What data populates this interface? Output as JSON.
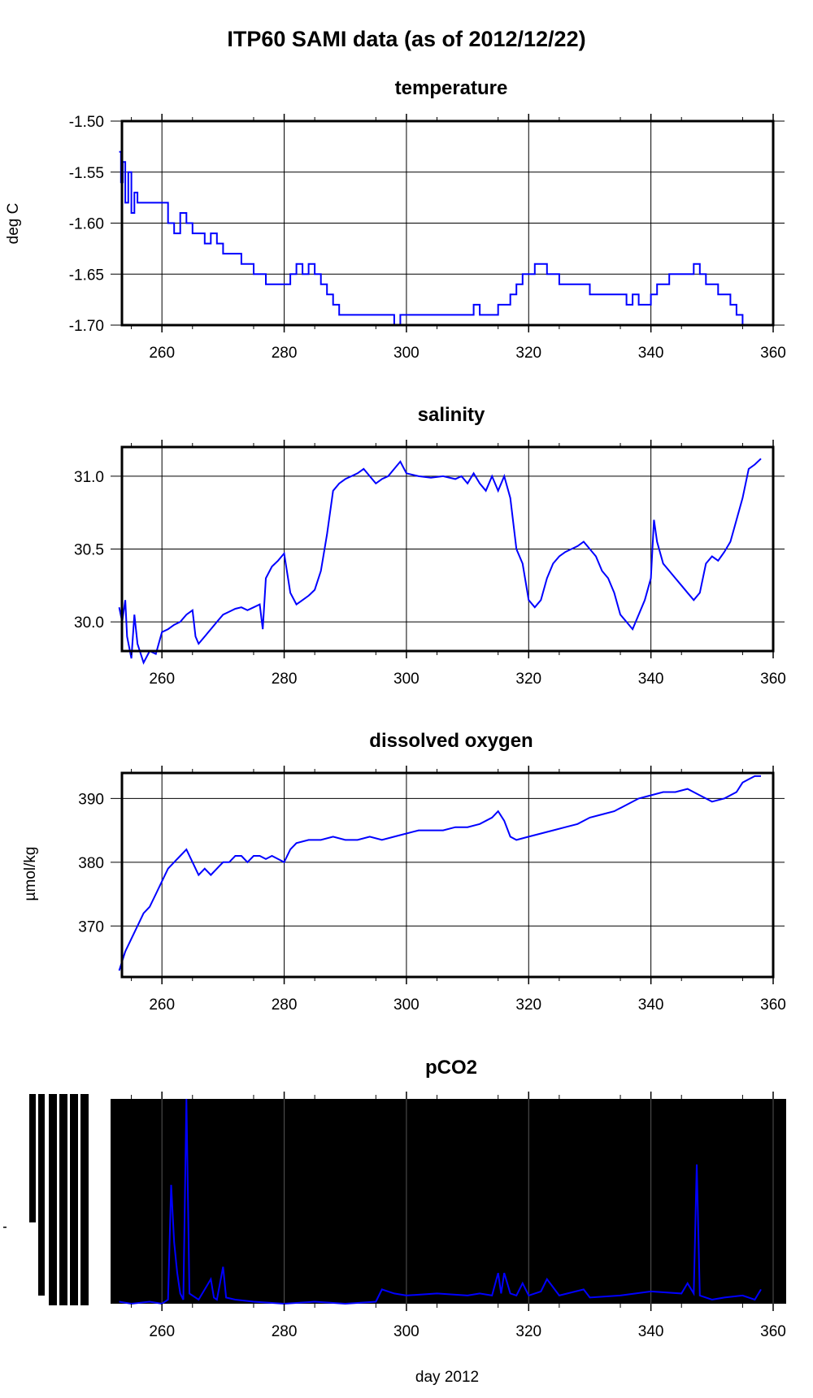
{
  "figure": {
    "title": "ITP60 SAMI data (as of 2012/12/22)",
    "xlabel": "day 2012",
    "line_color": "#0000ff",
    "grid_color": "#000000"
  },
  "chart_data": [
    {
      "type": "line",
      "title": "temperature",
      "xlabel": "",
      "ylabel": "deg C",
      "xlim": [
        250,
        360
      ],
      "ylim": [
        -1.7,
        -1.5
      ],
      "x_ticks": [
        260,
        280,
        300,
        320,
        340,
        360
      ],
      "y_ticks": [
        -1.7,
        -1.65,
        -1.6,
        -1.55,
        -1.5
      ],
      "y_tick_labels": [
        "-1.70",
        "-1.65",
        "-1.60",
        "-1.55",
        "-1.50"
      ],
      "grid": true,
      "step": true,
      "series": [
        {
          "x": [
            253,
            253.3,
            253.6,
            254,
            254.5,
            255,
            255.5,
            256,
            257,
            258,
            260,
            261,
            262,
            263,
            264,
            265,
            266,
            267,
            268,
            269,
            270,
            271,
            273,
            275,
            277,
            278,
            279,
            281,
            282,
            283,
            284,
            285,
            286,
            287,
            288,
            289,
            290,
            291,
            292,
            293,
            295,
            297,
            298,
            299,
            300,
            305,
            310,
            311,
            312,
            313,
            314,
            315,
            316,
            317,
            318,
            319,
            320,
            321,
            322,
            323,
            325,
            327,
            330,
            333,
            335,
            336,
            337,
            338,
            340,
            341,
            342,
            343,
            344,
            345,
            346,
            347,
            348,
            349,
            350,
            351,
            352,
            353,
            354,
            355,
            356,
            358
          ],
          "y": [
            -1.53,
            -1.56,
            -1.54,
            -1.58,
            -1.55,
            -1.59,
            -1.57,
            -1.58,
            -1.58,
            -1.58,
            -1.58,
            -1.6,
            -1.61,
            -1.59,
            -1.6,
            -1.61,
            -1.61,
            -1.62,
            -1.61,
            -1.62,
            -1.63,
            -1.63,
            -1.64,
            -1.65,
            -1.66,
            -1.66,
            -1.66,
            -1.65,
            -1.64,
            -1.65,
            -1.64,
            -1.65,
            -1.66,
            -1.67,
            -1.68,
            -1.69,
            -1.69,
            -1.69,
            -1.69,
            -1.69,
            -1.69,
            -1.69,
            -1.7,
            -1.69,
            -1.69,
            -1.69,
            -1.69,
            -1.68,
            -1.69,
            -1.69,
            -1.69,
            -1.68,
            -1.68,
            -1.67,
            -1.66,
            -1.65,
            -1.65,
            -1.64,
            -1.64,
            -1.65,
            -1.66,
            -1.66,
            -1.67,
            -1.67,
            -1.67,
            -1.68,
            -1.67,
            -1.68,
            -1.67,
            -1.66,
            -1.66,
            -1.65,
            -1.65,
            -1.65,
            -1.65,
            -1.64,
            -1.65,
            -1.66,
            -1.66,
            -1.67,
            -1.67,
            -1.68,
            -1.69,
            -1.7,
            -1.7,
            -1.7
          ]
        }
      ]
    },
    {
      "type": "line",
      "title": "salinity",
      "xlabel": "",
      "ylabel": "",
      "xlim": [
        250,
        360
      ],
      "ylim": [
        29.8,
        31.2
      ],
      "x_ticks": [
        260,
        280,
        300,
        320,
        340,
        360
      ],
      "y_ticks": [
        30.0,
        30.5,
        31.0
      ],
      "y_tick_labels": [
        "30.0",
        "30.5",
        "31.0"
      ],
      "grid": true,
      "step": false,
      "series": [
        {
          "x": [
            253,
            253.5,
            254,
            254.3,
            255,
            255.5,
            256,
            257,
            258,
            259,
            260,
            261,
            262,
            263,
            264,
            265,
            265.5,
            266,
            267,
            268,
            269,
            270,
            271,
            272,
            273,
            274,
            275,
            276,
            276.5,
            277,
            278,
            279,
            280,
            281,
            282,
            283,
            284,
            285,
            286,
            287,
            288,
            289,
            290,
            291,
            292,
            293,
            294,
            295,
            296,
            297,
            298,
            299,
            300,
            302,
            304,
            306,
            308,
            309,
            310,
            311,
            312,
            313,
            314,
            315,
            316,
            317,
            318,
            319,
            320,
            321,
            322,
            323,
            324,
            325,
            326,
            327,
            328,
            329,
            330,
            331,
            332,
            333,
            334,
            335,
            336,
            337,
            338,
            339,
            340,
            340.5,
            341,
            342,
            343,
            344,
            345,
            346,
            347,
            348,
            349,
            350,
            351,
            352,
            353,
            354,
            355,
            356,
            357,
            358
          ],
          "y": [
            30.1,
            30.0,
            30.15,
            29.9,
            29.75,
            30.05,
            29.85,
            29.72,
            29.8,
            29.78,
            29.93,
            29.95,
            29.98,
            30.0,
            30.05,
            30.08,
            29.9,
            29.85,
            29.9,
            29.95,
            30.0,
            30.05,
            30.07,
            30.09,
            30.1,
            30.08,
            30.1,
            30.12,
            29.95,
            30.3,
            30.38,
            30.42,
            30.47,
            30.2,
            30.12,
            30.15,
            30.18,
            30.22,
            30.35,
            30.6,
            30.9,
            30.95,
            30.98,
            31.0,
            31.02,
            31.05,
            31.0,
            30.95,
            30.98,
            31.0,
            31.05,
            31.1,
            31.02,
            31.0,
            30.99,
            31.0,
            30.98,
            31.0,
            30.95,
            31.02,
            30.95,
            30.9,
            31.0,
            30.9,
            31.0,
            30.85,
            30.5,
            30.4,
            30.15,
            30.1,
            30.15,
            30.3,
            30.4,
            30.45,
            30.48,
            30.5,
            30.52,
            30.55,
            30.5,
            30.45,
            30.35,
            30.3,
            30.2,
            30.05,
            30.0,
            29.95,
            30.05,
            30.15,
            30.3,
            30.7,
            30.55,
            30.4,
            30.35,
            30.3,
            30.25,
            30.2,
            30.15,
            30.2,
            30.4,
            30.45,
            30.42,
            30.48,
            30.55,
            30.7,
            30.85,
            31.05,
            31.08,
            31.12
          ]
        }
      ]
    },
    {
      "type": "line",
      "title": "dissolved oxygen",
      "xlabel": "",
      "ylabel": "µmol/kg",
      "xlim": [
        250,
        360
      ],
      "ylim": [
        362,
        394
      ],
      "x_ticks": [
        260,
        280,
        300,
        320,
        340,
        360
      ],
      "y_ticks": [
        370,
        380,
        390
      ],
      "y_tick_labels": [
        "370",
        "380",
        "390"
      ],
      "grid": true,
      "step": false,
      "series": [
        {
          "x": [
            253,
            254,
            255,
            256,
            257,
            258,
            259,
            260,
            261,
            262,
            263,
            264,
            265,
            266,
            267,
            268,
            269,
            270,
            271,
            272,
            273,
            274,
            275,
            276,
            277,
            278,
            279,
            280,
            281,
            282,
            284,
            286,
            288,
            290,
            292,
            294,
            296,
            298,
            300,
            302,
            304,
            306,
            308,
            310,
            312,
            314,
            315,
            316,
            317,
            318,
            320,
            322,
            324,
            326,
            328,
            330,
            332,
            334,
            336,
            338,
            340,
            342,
            344,
            346,
            348,
            350,
            352,
            354,
            355,
            356,
            357,
            358
          ],
          "y": [
            363,
            366,
            368,
            370,
            372,
            373,
            375,
            377,
            379,
            380,
            381,
            382,
            380,
            378,
            379,
            378,
            379,
            380,
            380,
            381,
            381,
            380,
            381,
            381,
            380.5,
            381,
            380.5,
            380,
            382,
            383,
            383.5,
            383.5,
            384,
            383.5,
            383.5,
            384,
            383.5,
            384,
            384.5,
            385,
            385,
            385,
            385.5,
            385.5,
            386,
            387,
            388,
            386.5,
            384,
            383.5,
            384,
            384.5,
            385,
            385.5,
            386,
            387,
            387.5,
            388,
            389,
            390,
            390.5,
            391,
            391,
            391.5,
            390.5,
            389.5,
            390,
            391,
            392.5,
            393,
            393.5,
            393.5
          ]
        }
      ]
    },
    {
      "type": "line",
      "title": "pCO2",
      "xlabel": "day 2012",
      "ylabel": "",
      "xlim": [
        250,
        360
      ],
      "x_ticks": [
        260,
        280,
        300,
        320,
        340,
        360
      ],
      "grid": true,
      "background": "#000000",
      "series": [
        {
          "x": [
            253,
            255,
            258,
            260,
            261,
            261.5,
            262,
            262.5,
            263,
            263.5,
            264,
            264.5,
            266,
            268,
            268.5,
            269,
            270,
            270.5,
            272,
            275,
            280,
            285,
            290,
            295,
            296,
            297,
            298,
            300,
            305,
            310,
            312,
            314,
            315,
            315.5,
            316,
            317,
            318,
            319,
            320,
            322,
            323,
            325,
            329,
            330,
            335,
            340,
            345,
            346,
            347,
            347.5,
            348,
            350,
            352,
            355,
            357,
            358
          ],
          "y": [
            0.01,
            0.0,
            0.01,
            0.0,
            0.02,
            0.58,
            0.3,
            0.15,
            0.05,
            0.02,
            1.0,
            0.05,
            0.02,
            0.12,
            0.03,
            0.02,
            0.18,
            0.03,
            0.02,
            0.01,
            0.0,
            0.01,
            0.0,
            0.01,
            0.07,
            0.06,
            0.05,
            0.04,
            0.05,
            0.04,
            0.05,
            0.04,
            0.15,
            0.05,
            0.15,
            0.05,
            0.04,
            0.1,
            0.04,
            0.06,
            0.12,
            0.04,
            0.07,
            0.03,
            0.04,
            0.06,
            0.05,
            0.1,
            0.05,
            0.68,
            0.04,
            0.02,
            0.03,
            0.04,
            0.02,
            0.07
          ]
        }
      ]
    }
  ]
}
